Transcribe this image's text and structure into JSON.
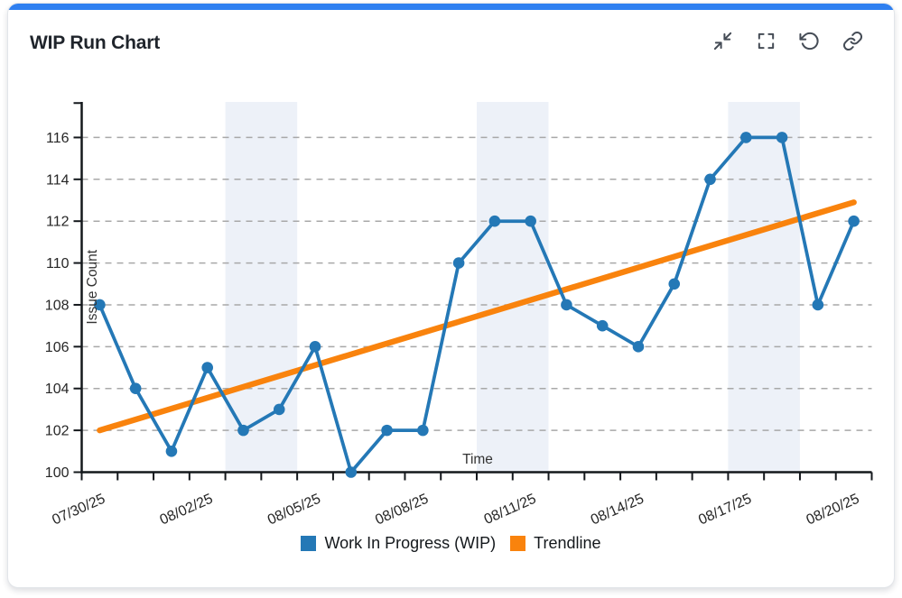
{
  "card": {
    "title": "WIP Run Chart",
    "accent_color": "#2e7ff0",
    "toolbar": {
      "buttons": [
        {
          "label": "collapse"
        },
        {
          "label": "fullscreen"
        },
        {
          "label": "reset"
        },
        {
          "label": "copy-link"
        }
      ]
    }
  },
  "chart_data": {
    "type": "line",
    "title": "WIP Run Chart",
    "xlabel": "Time",
    "ylabel": "Issue Count",
    "x_dates": [
      "07/30/25",
      "07/31/25",
      "08/01/25",
      "08/02/25",
      "08/03/25",
      "08/04/25",
      "08/05/25",
      "08/06/25",
      "08/07/25",
      "08/08/25",
      "08/09/25",
      "08/10/25",
      "08/11/25",
      "08/12/25",
      "08/13/25",
      "08/14/25",
      "08/15/25",
      "08/16/25",
      "08/17/25",
      "08/18/25",
      "08/19/25",
      "08/20/25"
    ],
    "x_tick_labels": [
      "07/30/25",
      "08/02/25",
      "08/05/25",
      "08/08/25",
      "08/11/25",
      "08/14/25",
      "08/17/25",
      "08/20/25"
    ],
    "x_tick_every": 3,
    "series": [
      {
        "name": "Work In Progress (WIP)",
        "type": "line-with-markers",
        "color": "#2478b6",
        "values": [
          108,
          104,
          101,
          105,
          102,
          103,
          106,
          100,
          102,
          102,
          110,
          112,
          112,
          108,
          107,
          106,
          109,
          114,
          116,
          116,
          108,
          112
        ]
      },
      {
        "name": "Trendline",
        "type": "trendline",
        "color": "#f9830d",
        "start_value": 102.0,
        "end_value": 112.9
      }
    ],
    "ylim": [
      100,
      117.7
    ],
    "yticks": [
      100,
      102,
      104,
      106,
      108,
      110,
      112,
      114,
      116
    ],
    "grid": "horizontal-dashed",
    "grid_color": "#a8a8a8",
    "axis_color": "#14181c",
    "tick_label_color": "#262626",
    "band_color": "#edf1f8",
    "shaded_band_index_ranges": [
      [
        4,
        6
      ],
      [
        11,
        13
      ],
      [
        18,
        20
      ]
    ],
    "legend_position": "bottom"
  }
}
